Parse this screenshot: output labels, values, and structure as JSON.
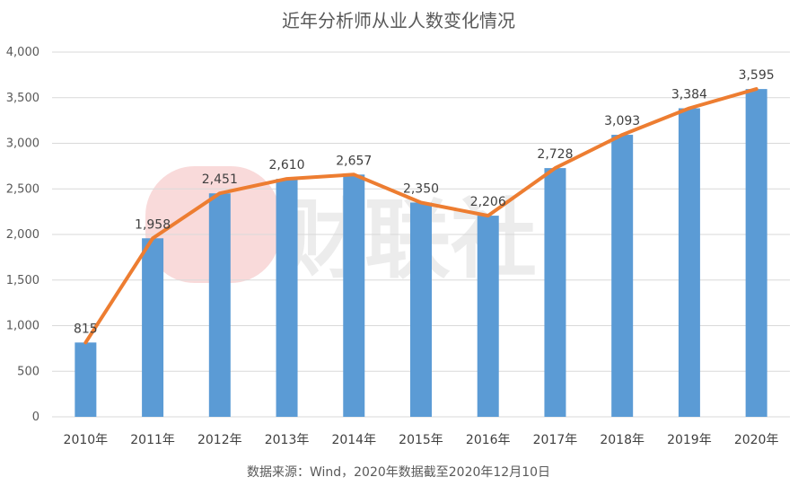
{
  "chart_data": {
    "type": "bar",
    "title": "近年分析师从业人数变化情况",
    "categories": [
      "2010年",
      "2011年",
      "2012年",
      "2013年",
      "2014年",
      "2015年",
      "2016年",
      "2017年",
      "2018年",
      "2019年",
      "2020年"
    ],
    "series": [
      {
        "type": "bar",
        "values": [
          815,
          1958,
          2451,
          2610,
          2657,
          2350,
          2206,
          2728,
          3093,
          3384,
          3595
        ],
        "color": "#5b9bd5"
      },
      {
        "type": "line",
        "values": [
          815,
          1958,
          2451,
          2610,
          2657,
          2350,
          2206,
          2728,
          3093,
          3384,
          3595
        ],
        "color": "#ed7d31"
      }
    ],
    "data_labels": [
      "815",
      "1,958",
      "2,451",
      "2,610",
      "2,657",
      "2,350",
      "2,206",
      "2,728",
      "3,093",
      "3,384",
      "3,595"
    ],
    "yticks": [
      "0",
      "500",
      "1,000",
      "1,500",
      "2,000",
      "2,500",
      "3,000",
      "3,500",
      "4,000"
    ],
    "ylim": [
      0,
      4000
    ],
    "grid": true,
    "legend": "none",
    "source": "数据来源：Wind，2020年数据截至2020年12月10日",
    "watermark": "财联社"
  }
}
